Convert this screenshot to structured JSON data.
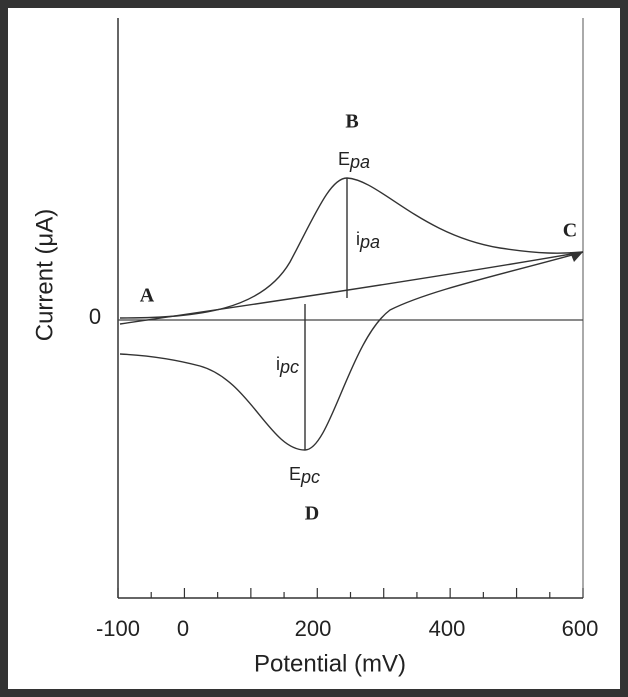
{
  "axes": {
    "y_label": "Current (μA)",
    "x_label": "Potential (mV)",
    "y_zero": "0",
    "x_ticks": [
      "-100",
      "0",
      "200",
      "400",
      "600"
    ]
  },
  "points": {
    "a": "A",
    "b": "B",
    "c": "C",
    "d": "D"
  },
  "annotations": {
    "epa": {
      "letter": "E",
      "sub": "pa"
    },
    "ipa": {
      "letter": "i",
      "sub": "pa"
    },
    "ipc": {
      "letter": "i",
      "sub": "pc"
    },
    "epc": {
      "letter": "E",
      "sub": "pc"
    }
  }
}
